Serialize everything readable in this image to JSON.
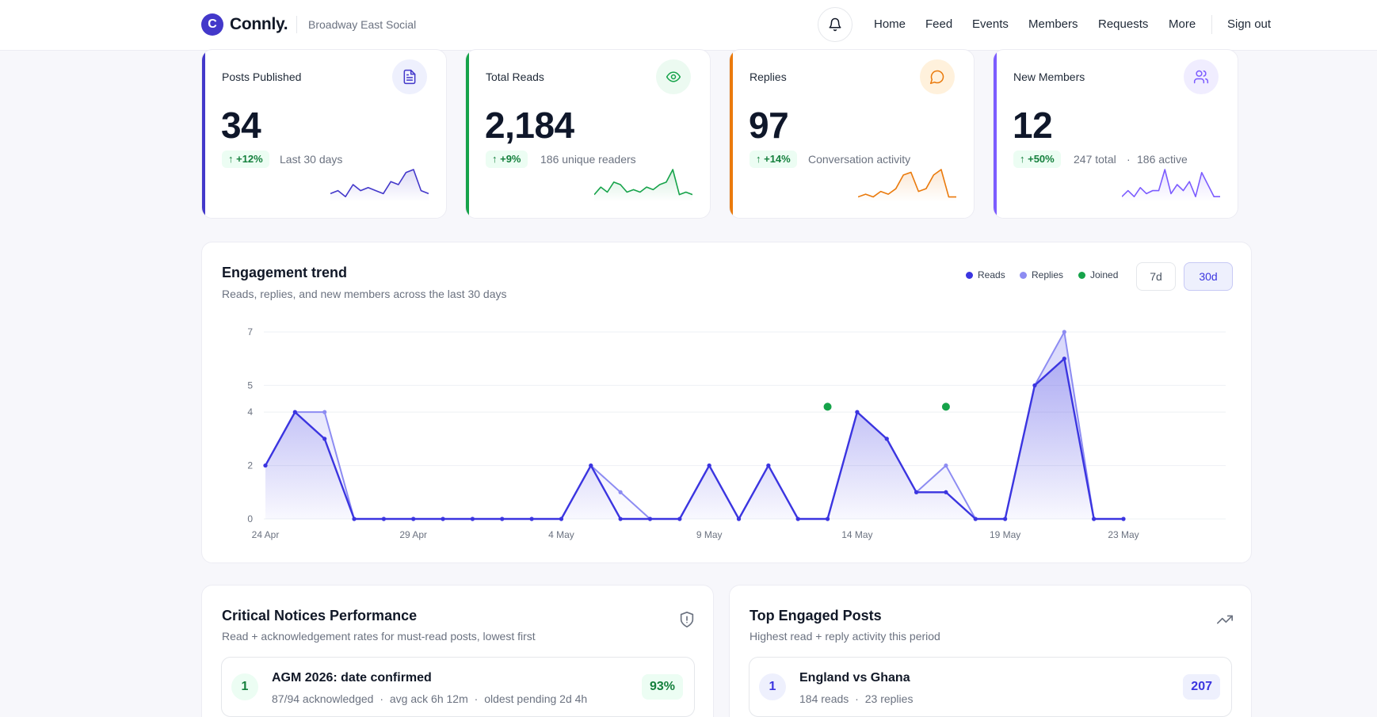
{
  "header": {
    "logo_letter": "C",
    "app_name": "Connly.",
    "community": "Broadway East Social",
    "nav": [
      "Home",
      "Feed",
      "Events",
      "Members",
      "Requests",
      "More"
    ],
    "sign_out": "Sign out"
  },
  "stats": [
    {
      "label": "Posts Published",
      "value": "34",
      "change": "↑ +12%",
      "note": "Last 30 days",
      "accent": "#4338ca",
      "icon": "document-icon",
      "spark": [
        2,
        3,
        1,
        5,
        3,
        4,
        3,
        2,
        6,
        5,
        9,
        10,
        3,
        2
      ]
    },
    {
      "label": "Total Reads",
      "value": "2,184",
      "change": "↑ +9%",
      "note": "186 unique readers",
      "accent": "#16a34a",
      "icon": "eye-icon",
      "spark": [
        2,
        5,
        3,
        7,
        6,
        3,
        4,
        3,
        5,
        4,
        6,
        7,
        12,
        2,
        3,
        2
      ]
    },
    {
      "label": "Replies",
      "value": "97",
      "change": "↑ +14%",
      "note": "Conversation activity",
      "accent": "#ea7a0c",
      "icon": "chat-icon",
      "spark": [
        1,
        2,
        1,
        3,
        2,
        4,
        9,
        10,
        3,
        4,
        9,
        11,
        1,
        1
      ]
    },
    {
      "label": "New Members",
      "value": "12",
      "change": "↑ +50%",
      "note_total": "247 total",
      "note_dot": "·",
      "note_active": "186 active",
      "accent": "#7c5cff",
      "icon": "users-icon",
      "spark": [
        1,
        3,
        1,
        4,
        2,
        3,
        3,
        10,
        2,
        5,
        3,
        6,
        1,
        9,
        5,
        1,
        1
      ]
    }
  ],
  "trend": {
    "title": "Engagement trend",
    "subtitle": "Reads, replies, and new members across the last 30 days",
    "legend": [
      {
        "name": "Reads",
        "color": "#3b35e0"
      },
      {
        "name": "Replies",
        "color": "#8d8cf2"
      },
      {
        "name": "Joined",
        "color": "#16a34a"
      }
    ],
    "ranges": [
      "7d",
      "30d"
    ],
    "selected_range": "30d"
  },
  "chart_data": {
    "type": "line",
    "x": [
      "24 Apr",
      "25 Apr",
      "26 Apr",
      "27 Apr",
      "28 Apr",
      "29 Apr",
      "30 Apr",
      "1 May",
      "2 May",
      "3 May",
      "4 May",
      "5 May",
      "6 May",
      "7 May",
      "8 May",
      "9 May",
      "10 May",
      "11 May",
      "12 May",
      "13 May",
      "14 May",
      "15 May",
      "16 May",
      "17 May",
      "18 May",
      "19 May",
      "20 May",
      "21 May",
      "22 May",
      "23 May"
    ],
    "x_tick_labels": [
      "24 Apr",
      "29 Apr",
      "4 May",
      "9 May",
      "14 May",
      "19 May",
      "23 May"
    ],
    "y_tick_labels": [
      "0",
      "2",
      "4",
      "5",
      "7"
    ],
    "ylim": [
      0,
      7
    ],
    "series": [
      {
        "name": "Reads",
        "values": [
          2,
          4,
          3,
          0,
          0,
          0,
          0,
          0,
          0,
          0,
          0,
          2,
          0,
          0,
          0,
          2,
          0,
          2,
          0,
          0,
          4,
          3,
          1,
          1,
          0,
          0,
          5,
          6,
          0,
          0
        ]
      },
      {
        "name": "Replies",
        "values": [
          2,
          4,
          4,
          0,
          0,
          0,
          0,
          0,
          0,
          0,
          0,
          2,
          1,
          0,
          0,
          2,
          0,
          2,
          0,
          0,
          4,
          3,
          1,
          2,
          0,
          0,
          5,
          7,
          0,
          0
        ]
      },
      {
        "name": "Joined",
        "points": [
          {
            "x": "13 May",
            "y": 4.2
          },
          {
            "x": "17 May",
            "y": 4.2
          }
        ]
      }
    ],
    "grid": true
  },
  "notices": {
    "title": "Critical Notices Performance",
    "subtitle": "Read + acknowledgement rates for must-read posts, lowest first",
    "rows": [
      {
        "rank": "1",
        "title": "AGM 2026: date confirmed",
        "acked": "87/94 acknowledged",
        "dot": "·",
        "avg": "avg ack 6h 12m",
        "pending": "oldest pending 2d 4h",
        "rate": "93%"
      }
    ]
  },
  "top_posts": {
    "title": "Top Engaged Posts",
    "subtitle": "Highest read + reply activity this period",
    "rows": [
      {
        "rank": "1",
        "title": "England vs Ghana",
        "reads": "184 reads",
        "dot": "·",
        "replies": "23 replies",
        "score": "207"
      }
    ]
  }
}
